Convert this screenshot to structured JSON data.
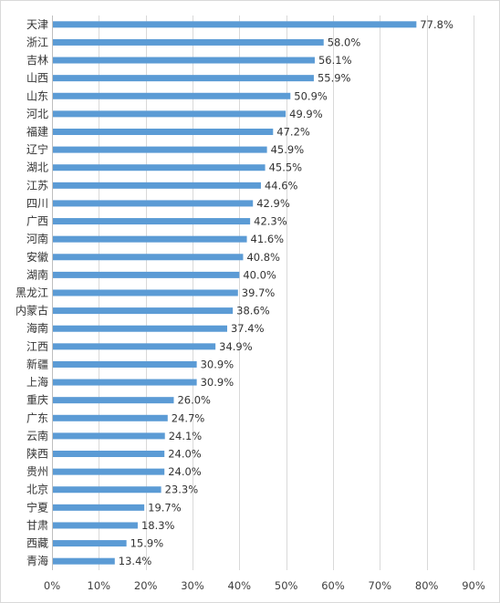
{
  "chart_data": {
    "type": "bar",
    "orientation": "horizontal",
    "categories": [
      "天津",
      "浙江",
      "吉林",
      "山西",
      "山东",
      "河北",
      "福建",
      "辽宁",
      "湖北",
      "江苏",
      "四川",
      "广西",
      "河南",
      "安徽",
      "湖南",
      "黑龙江",
      "内蒙古",
      "海南",
      "江西",
      "新疆",
      "上海",
      "重庆",
      "广东",
      "云南",
      "陕西",
      "贵州",
      "北京",
      "宁夏",
      "甘肃",
      "西藏",
      "青海"
    ],
    "values": [
      77.8,
      58.0,
      56.1,
      55.9,
      50.9,
      49.9,
      47.2,
      45.9,
      45.5,
      44.6,
      42.9,
      42.3,
      41.6,
      40.8,
      40.0,
      39.7,
      38.6,
      37.4,
      34.9,
      30.9,
      30.9,
      26.0,
      24.7,
      24.1,
      24.0,
      24.0,
      23.3,
      19.7,
      18.3,
      15.9,
      13.4
    ],
    "value_labels": [
      "77.8%",
      "58.0%",
      "56.1%",
      "55.9%",
      "50.9%",
      "49.9%",
      "47.2%",
      "45.9%",
      "45.5%",
      "44.6%",
      "42.9%",
      "42.3%",
      "41.6%",
      "40.8%",
      "40.0%",
      "39.7%",
      "38.6%",
      "37.4%",
      "34.9%",
      "30.9%",
      "30.9%",
      "26.0%",
      "24.7%",
      "24.1%",
      "24.0%",
      "24.0%",
      "23.3%",
      "19.7%",
      "18.3%",
      "15.9%",
      "13.4%"
    ],
    "xlim": [
      0,
      90
    ],
    "x_ticks": [
      0,
      10,
      20,
      30,
      40,
      50,
      60,
      70,
      80,
      90
    ],
    "x_tick_labels": [
      "0%",
      "10%",
      "20%",
      "30%",
      "40%",
      "50%",
      "60%",
      "70%",
      "80%",
      "90%"
    ],
    "grid": "vertical",
    "bar_color": "#5b9bd5",
    "grid_color": "#d9d9d9",
    "title": "",
    "xlabel": "",
    "ylabel": ""
  }
}
